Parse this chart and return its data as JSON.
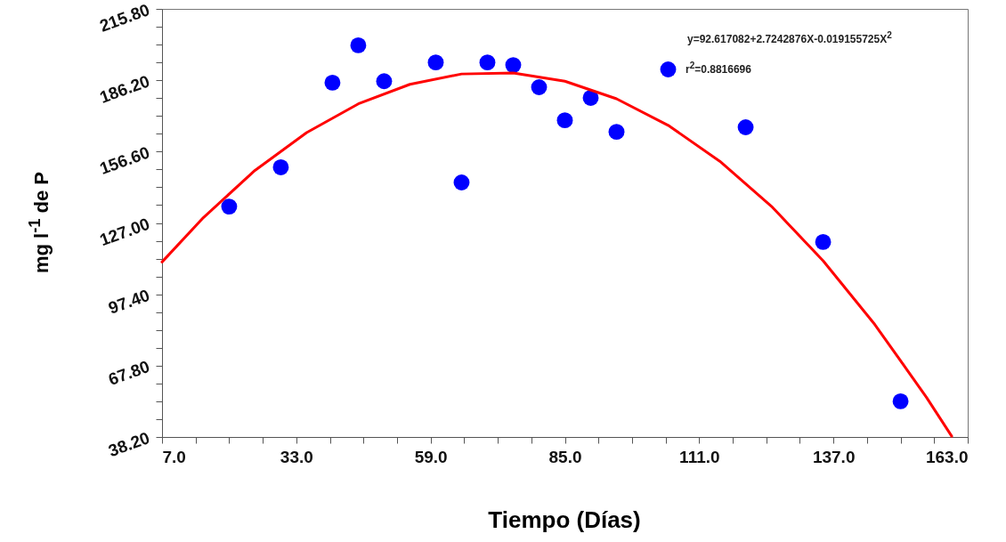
{
  "chart_data": {
    "type": "scatter",
    "xlabel": "Tiempo (Días)",
    "ylabel": "mg l$^{-1}$ de P",
    "annotations": [
      "y=92.617082+2.7242876X-0.019155725X$^{2}$",
      "r$^{2}$=0.8816696"
    ],
    "series": [
      {
        "type": "scatter",
        "color": "#0000ff",
        "marker": "circle",
        "x": [
          20,
          30,
          40,
          45,
          50,
          60,
          65,
          70,
          75,
          80,
          85,
          90,
          95,
          105,
          120,
          135,
          150
        ],
        "values": [
          133.8,
          150.1,
          185.2,
          200.7,
          185.8,
          193.6,
          143.8,
          193.6,
          192.5,
          183.3,
          169.6,
          178.9,
          164.8,
          190.7,
          166.7,
          119.1,
          53.0
        ]
      },
      {
        "type": "line",
        "color": "#ff0000",
        "marker": "none",
        "x": [
          7,
          15,
          25,
          35,
          45,
          55,
          65,
          75,
          85,
          95,
          105,
          115,
          125,
          135,
          145,
          155,
          159.9
        ],
        "values": [
          110.8,
          129.2,
          148.8,
          164.5,
          176.4,
          184.5,
          188.8,
          189.2,
          185.8,
          178.5,
          167.5,
          152.6,
          133.9,
          111.3,
          84.9,
          54.7,
          38.5
        ]
      }
    ],
    "xlim": [
      7,
      163
    ],
    "ylim": [
      38.2,
      215.8
    ],
    "xticks": [
      {
        "value": 7,
        "label": "7.0"
      },
      {
        "value": 13.5,
        "label": null
      },
      {
        "value": 20,
        "label": null
      },
      {
        "value": 26.5,
        "label": null
      },
      {
        "value": 33,
        "label": "33.0"
      },
      {
        "value": 39.5,
        "label": null
      },
      {
        "value": 46,
        "label": null
      },
      {
        "value": 52.5,
        "label": null
      },
      {
        "value": 59,
        "label": "59.0"
      },
      {
        "value": 65.5,
        "label": null
      },
      {
        "value": 72,
        "label": null
      },
      {
        "value": 78.5,
        "label": null
      },
      {
        "value": 85,
        "label": "85.0"
      },
      {
        "value": 91.5,
        "label": null
      },
      {
        "value": 98,
        "label": null
      },
      {
        "value": 104.5,
        "label": null
      },
      {
        "value": 111,
        "label": "111.0"
      },
      {
        "value": 117.5,
        "label": null
      },
      {
        "value": 124,
        "label": null
      },
      {
        "value": 130.5,
        "label": null
      },
      {
        "value": 137,
        "label": "137.0"
      },
      {
        "value": 143.5,
        "label": null
      },
      {
        "value": 150,
        "label": null
      },
      {
        "value": 156.5,
        "label": null
      },
      {
        "value": 163,
        "label": "163.0"
      }
    ],
    "yticks": [
      {
        "value": 38.2,
        "label": "38.20"
      },
      {
        "value": 45.6,
        "label": null
      },
      {
        "value": 53,
        "label": null
      },
      {
        "value": 60.4,
        "label": null
      },
      {
        "value": 67.8,
        "label": "67.80"
      },
      {
        "value": 75.2,
        "label": null
      },
      {
        "value": 82.6,
        "label": null
      },
      {
        "value": 90,
        "label": null
      },
      {
        "value": 97.4,
        "label": "97.40"
      },
      {
        "value": 104.8,
        "label": null
      },
      {
        "value": 112.2,
        "label": null
      },
      {
        "value": 119.6,
        "label": null
      },
      {
        "value": 127,
        "label": "127.00"
      },
      {
        "value": 134.4,
        "label": null
      },
      {
        "value": 141.8,
        "label": null
      },
      {
        "value": 149.2,
        "label": null
      },
      {
        "value": 156.6,
        "label": "156.60"
      },
      {
        "value": 164,
        "label": null
      },
      {
        "value": 171.4,
        "label": null
      },
      {
        "value": 178.8,
        "label": null
      },
      {
        "value": 186.2,
        "label": "186.20"
      },
      {
        "value": 193.6,
        "label": null
      },
      {
        "value": 201,
        "label": null
      },
      {
        "value": 208.4,
        "label": null
      },
      {
        "value": 215.8,
        "label": "215.80"
      }
    ],
    "grid": false
  }
}
